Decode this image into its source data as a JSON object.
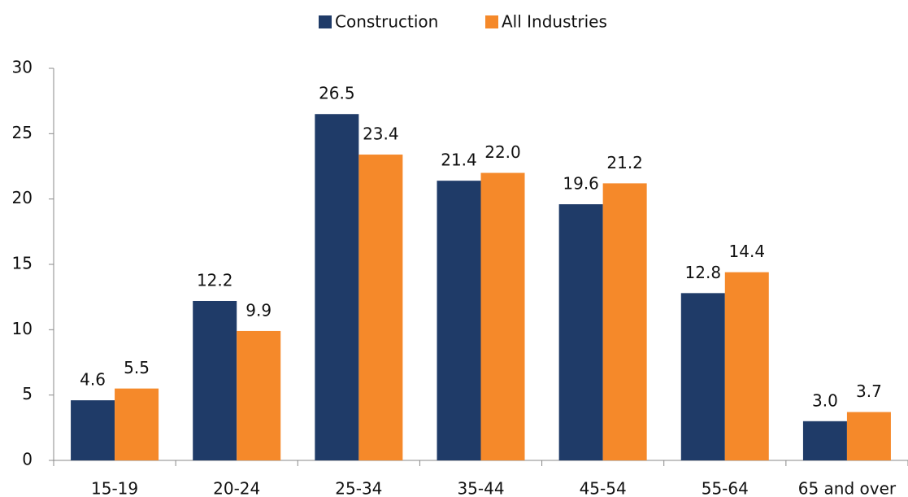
{
  "chart_data": {
    "type": "bar",
    "categories": [
      "15-19",
      "20-24",
      "25-34",
      "35-44",
      "45-54",
      "55-64",
      "65 and over"
    ],
    "series": [
      {
        "name": "Construction",
        "color": "#1f3b68",
        "values": [
          4.6,
          12.2,
          26.5,
          21.4,
          19.6,
          12.8,
          3.0
        ],
        "value_labels": [
          "4.6",
          "12.2",
          "26.5",
          "21.4",
          "19.6",
          "12.8",
          "3.0"
        ]
      },
      {
        "name": "All Industries",
        "color": "#f5892a",
        "values": [
          5.5,
          9.9,
          23.4,
          22.0,
          21.2,
          14.4,
          3.7
        ],
        "value_labels": [
          "5.5",
          "9.9",
          "23.4",
          "22.0",
          "21.2",
          "14.4",
          "3.7"
        ]
      }
    ],
    "ylim": [
      0,
      30
    ],
    "yticks": [
      0,
      5,
      10,
      15,
      20,
      25,
      30
    ],
    "grid": false,
    "legend": "top"
  }
}
